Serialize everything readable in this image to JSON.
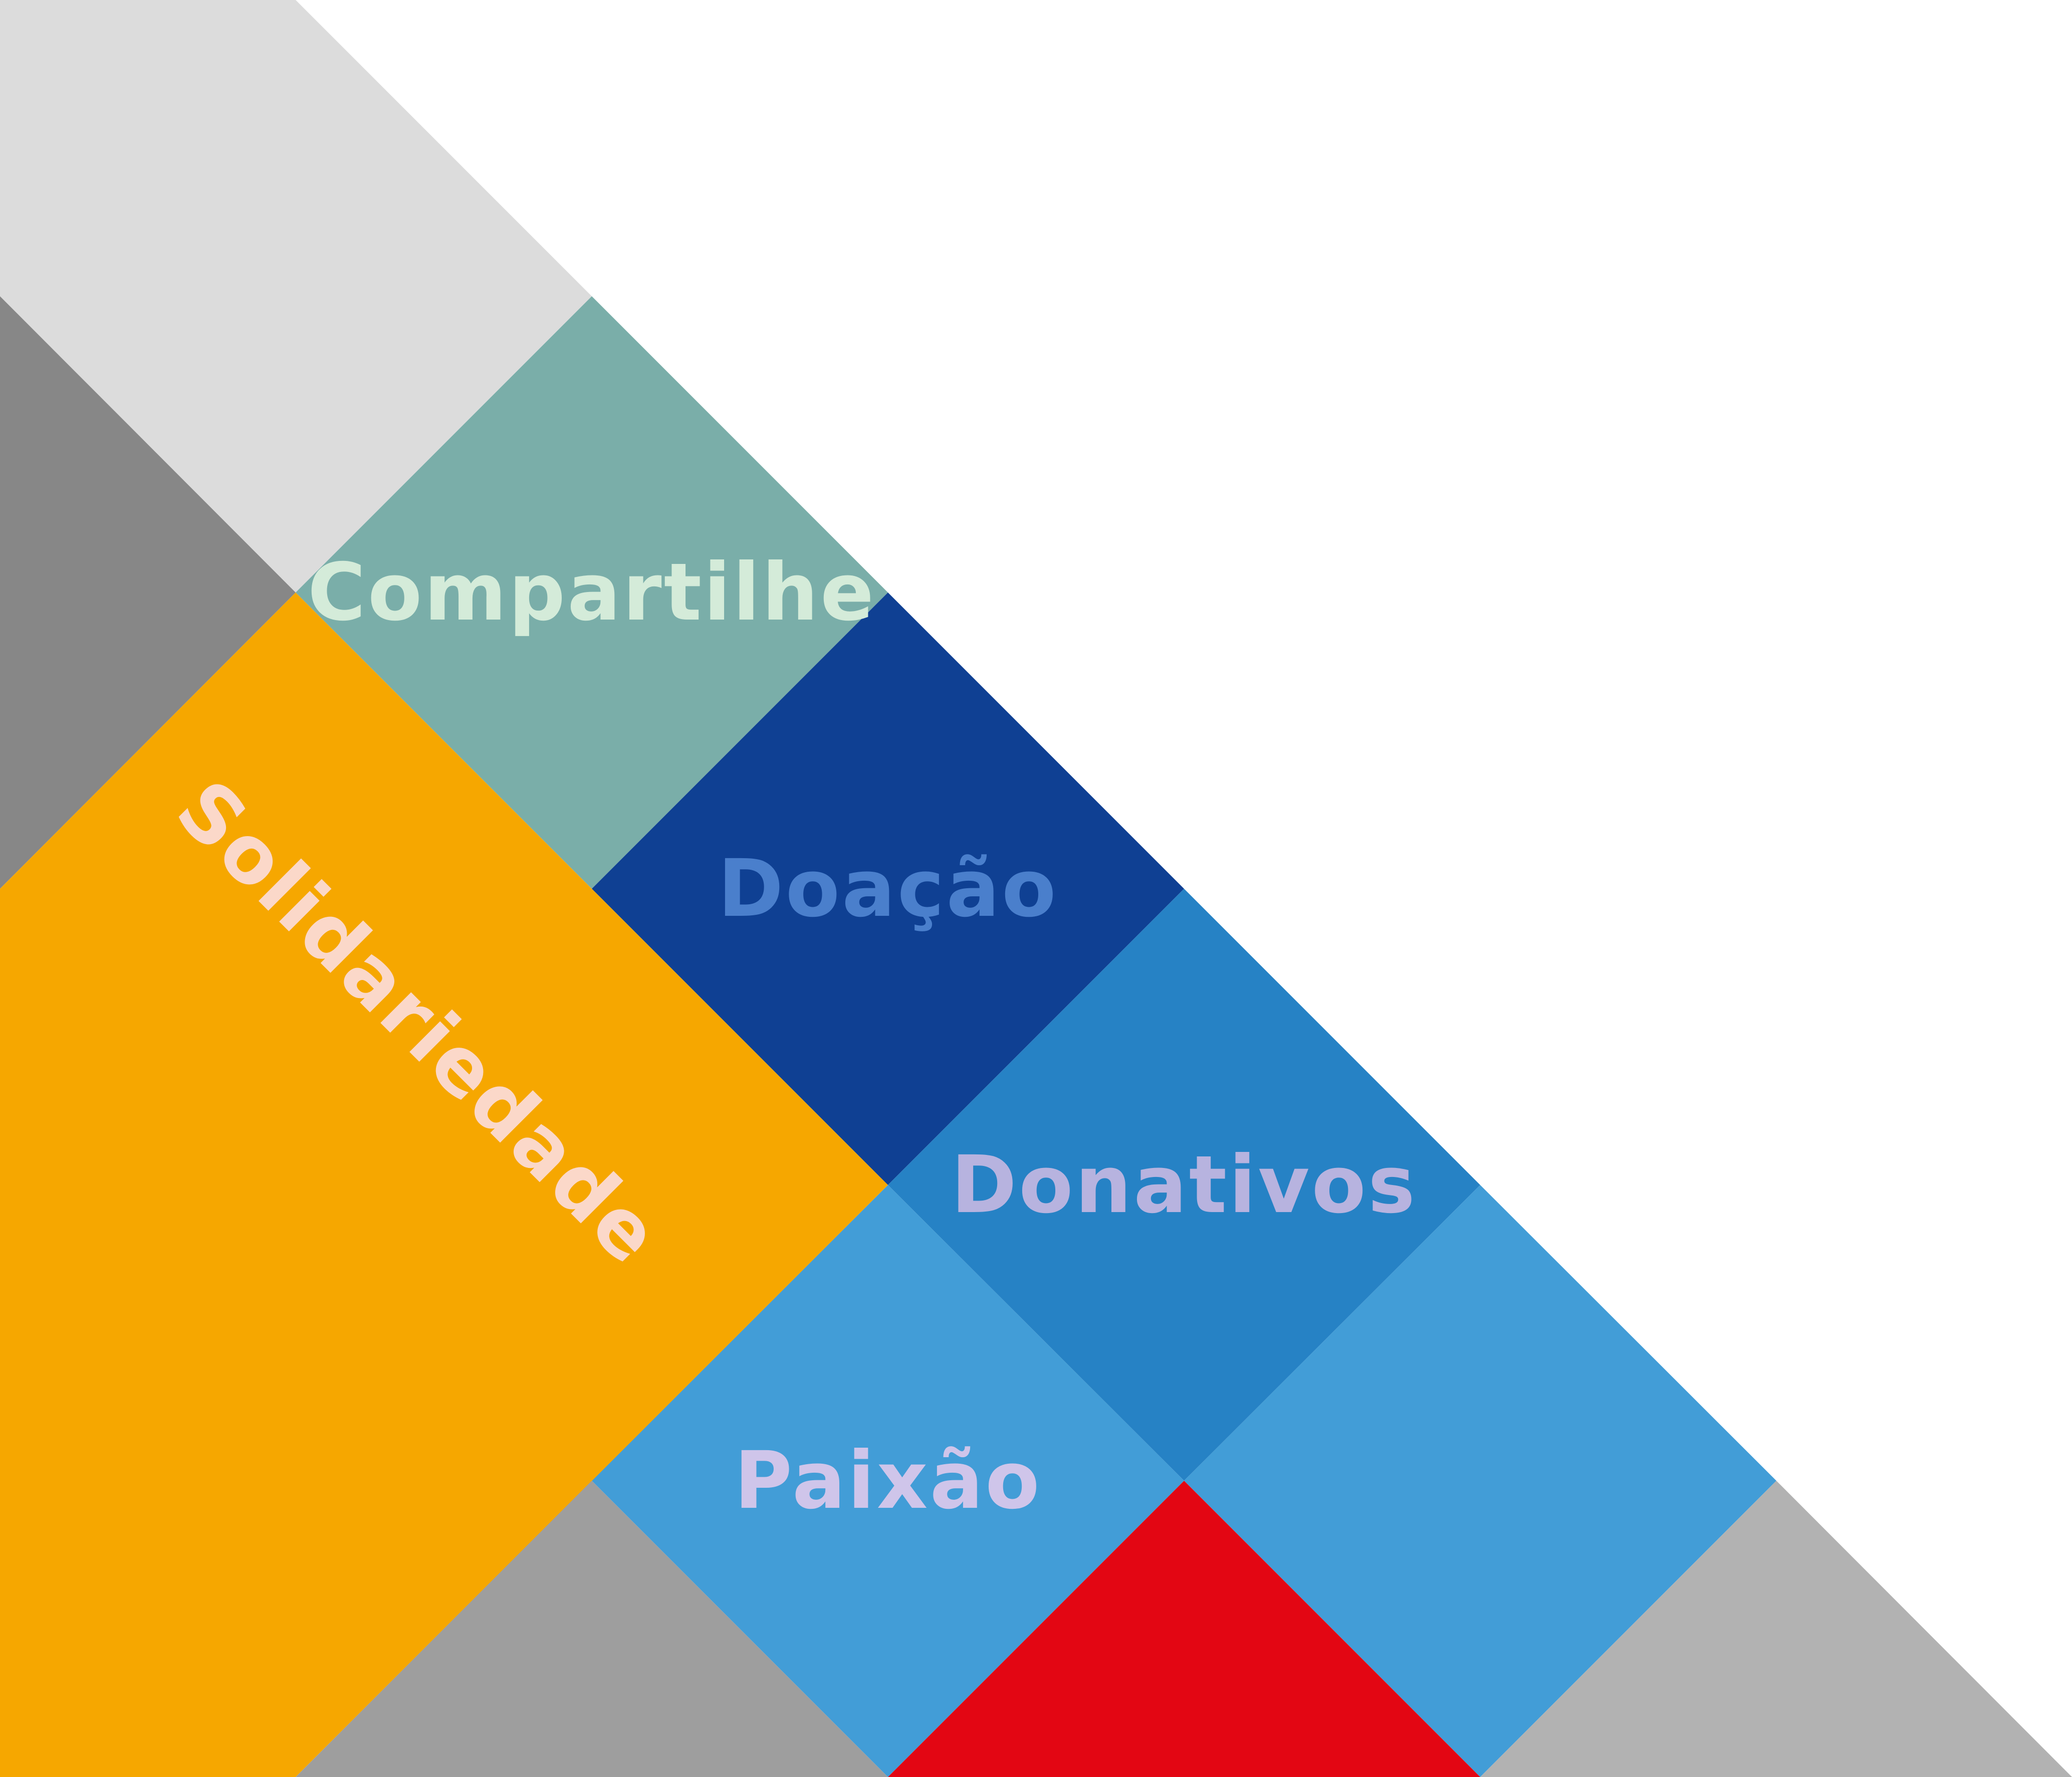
{
  "words": {
    "compartilhe": "Compartilhe",
    "doacao": "Doação",
    "donativos": "Donativos",
    "paixao": "Paixão",
    "solidariedade": "Solidariedade"
  },
  "colors": {
    "background": "#ffffff",
    "light_gray": "#dcdcdc",
    "dark_gray": "#878787",
    "mid_gray": "#9e9e9e",
    "silver": "#b2b2b2",
    "teal": "#7aaea9",
    "navy": "#0f4093",
    "blue": "#2682c5",
    "sky_blue": "#429dd7",
    "orange": "#f6a700",
    "red": "#e30613",
    "text_compartilhe": "#d4ebd9",
    "text_doacao": "#4a7fcc",
    "text_donativos": "#b7b3df",
    "text_paixao": "#cfc5ea",
    "text_solidariedade": "#fbd8c9"
  }
}
